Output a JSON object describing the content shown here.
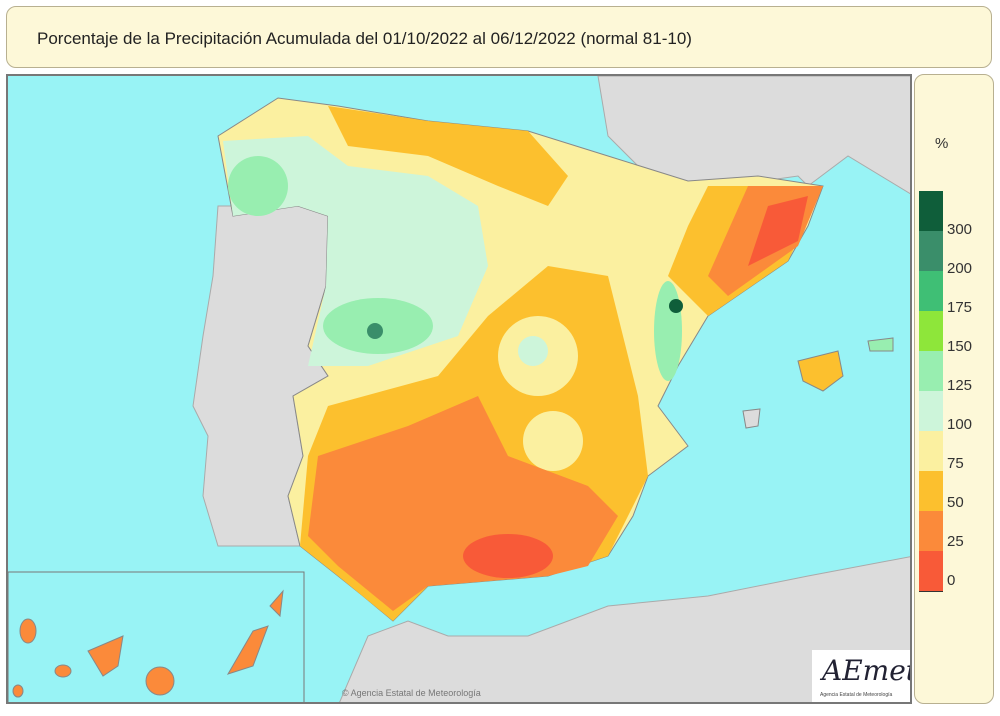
{
  "title": "Porcentaje de la Precipitación Acumulada del 01/10/2022 al 06/12/2022 (normal 81-10)",
  "legend": {
    "unit": "%",
    "classes": [
      {
        "label": "300",
        "color": "#0f5e3a"
      },
      {
        "label": "200",
        "color": "#3a8e6a"
      },
      {
        "label": "175",
        "color": "#3fbf75"
      },
      {
        "label": "150",
        "color": "#8ee63a"
      },
      {
        "label": "125",
        "color": "#98eeb0"
      },
      {
        "label": "100",
        "color": "#cdf5da"
      },
      {
        "label": "75",
        "color": "#fbf0a0"
      },
      {
        "label": "50",
        "color": "#fcc02e"
      },
      {
        "label": "25",
        "color": "#fb8a3a"
      },
      {
        "label": "0",
        "color": "#f85a38"
      }
    ]
  },
  "logo": {
    "text": "AEmet",
    "subtitle": "Agencia Estatal de Meteorología"
  },
  "credit": "© Agencia Estatal de Meteorología",
  "colors": {
    "sea": "#98f3f5",
    "land_other": "#dcdcdc",
    "panel": "#fdf8d8"
  }
}
